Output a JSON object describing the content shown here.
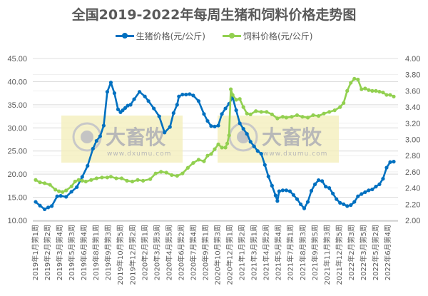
{
  "chart_data": {
    "type": "line",
    "title": "全国2019-2022年每周生猪和饲料价格走势图",
    "xlabel": "",
    "ylabel_left": "",
    "ylabel_right": "",
    "ylim_left": [
      10,
      45
    ],
    "ylim_right": [
      2.0,
      4.0
    ],
    "grid": true,
    "legend_position": "top",
    "left_ticks": [
      "45.00",
      "40.00",
      "35.00",
      "30.00",
      "25.00",
      "20.00",
      "15.00",
      "10.00"
    ],
    "right_ticks": [
      "4.00",
      "3.80",
      "3.60",
      "3.40",
      "3.20",
      "3.00",
      "2.80",
      "2.60",
      "2.40",
      "2.20",
      "2.00"
    ],
    "categories": [
      "2019年1月第1周",
      "2019年2月第2周",
      "2019年3月第4周",
      "2019年5月第3周",
      "2019年6月第4周",
      "2019年8月第1周",
      "2019年9月第3周",
      "2019年10月第5周",
      "2019年12月第2周",
      "2020年2月第1周",
      "2020年3月第3周",
      "2020年4月第5周",
      "2020年6月第2周",
      "2020年7月第4周",
      "2020年9月第1周",
      "2020年10月第3周",
      "2020年12月第1周",
      "2021年1月第2周",
      "2021年3月第1周",
      "2021年4月第2周",
      "2021年5月第4周",
      "2021年7月第1周",
      "2021年8月第3周",
      "2021年9月第5周",
      "2021年11月第3周",
      "2021年12月第5周",
      "2022年2月第3周",
      "2022年3月第5周",
      "2022年5月第2周",
      "2022年6月第4周"
    ],
    "series": [
      {
        "name": "生猪价格(元/公斤)",
        "axis": "left",
        "color": "#0070C0",
        "points_x_frac": [
          0,
          0.012,
          0.025,
          0.035,
          0.045,
          0.06,
          0.07,
          0.085,
          0.1,
          0.115,
          0.13,
          0.145,
          0.16,
          0.17,
          0.18,
          0.19,
          0.2,
          0.21,
          0.22,
          0.23,
          0.237,
          0.243,
          0.25,
          0.257,
          0.265,
          0.275,
          0.29,
          0.305,
          0.315,
          0.33,
          0.345,
          0.36,
          0.375,
          0.385,
          0.395,
          0.4,
          0.41,
          0.42,
          0.43,
          0.44,
          0.455,
          0.47,
          0.48,
          0.49,
          0.5,
          0.51,
          0.52,
          0.53,
          0.54,
          0.55,
          0.56,
          0.57,
          0.58,
          0.59,
          0.6,
          0.61,
          0.62,
          0.63,
          0.64,
          0.65,
          0.66,
          0.67,
          0.675,
          0.68,
          0.69,
          0.7,
          0.71,
          0.72,
          0.73,
          0.74,
          0.75,
          0.76,
          0.77,
          0.78,
          0.79,
          0.8,
          0.81,
          0.82,
          0.83,
          0.84,
          0.85,
          0.86,
          0.87,
          0.88,
          0.89,
          0.9,
          0.91,
          0.92,
          0.93,
          0.94,
          0.95,
          0.96,
          0.97,
          0.98,
          0.99,
          1.0
        ],
        "values": [
          14,
          13.2,
          12.4,
          12.8,
          13.1,
          15.2,
          15.3,
          15.1,
          16.2,
          17.2,
          19.4,
          21.8,
          25.5,
          27.2,
          28.2,
          30.5,
          37.8,
          39.8,
          37.5,
          34,
          33.4,
          33.8,
          34.3,
          34.8,
          35,
          36.2,
          37.8,
          36.8,
          35.8,
          34.2,
          32.5,
          29,
          30.2,
          33.2,
          35,
          36.8,
          37.2,
          37.2,
          37.3,
          37,
          35.8,
          33,
          31.5,
          30.4,
          30.3,
          30.5,
          33,
          34.2,
          35.2,
          36.6,
          33.8,
          31,
          29.8,
          28.7,
          27,
          26,
          25,
          24.4,
          22,
          19.5,
          17.5,
          15.4,
          14.2,
          16.3,
          16.5,
          16.5,
          16.3,
          15.5,
          14.6,
          13.5,
          12.6,
          14,
          16.4,
          17.8,
          18.7,
          18.5,
          17.3,
          17,
          15.8,
          14.6,
          13.8,
          13.5,
          13.1,
          13.3,
          14,
          15.2,
          15.7,
          16.1,
          16.5,
          16.7,
          17.3,
          17.8,
          19,
          21.4,
          22.6,
          22.7
        ]
      },
      {
        "name": "饲料价格(元/公斤)",
        "axis": "right",
        "color": "#92D050",
        "points_x_frac": [
          0,
          0.012,
          0.025,
          0.04,
          0.055,
          0.065,
          0.075,
          0.085,
          0.1,
          0.11,
          0.12,
          0.13,
          0.14,
          0.155,
          0.17,
          0.185,
          0.2,
          0.21,
          0.225,
          0.24,
          0.255,
          0.27,
          0.285,
          0.3,
          0.32,
          0.335,
          0.35,
          0.365,
          0.38,
          0.395,
          0.41,
          0.425,
          0.44,
          0.455,
          0.47,
          0.48,
          0.49,
          0.5,
          0.51,
          0.52,
          0.53,
          0.535,
          0.54,
          0.545,
          0.55,
          0.56,
          0.57,
          0.58,
          0.59,
          0.6,
          0.615,
          0.63,
          0.645,
          0.66,
          0.675,
          0.69,
          0.7,
          0.715,
          0.73,
          0.745,
          0.76,
          0.775,
          0.79,
          0.805,
          0.82,
          0.835,
          0.85,
          0.86,
          0.87,
          0.88,
          0.89,
          0.9,
          0.91,
          0.92,
          0.93,
          0.94,
          0.95,
          0.96,
          0.97,
          0.98,
          0.99,
          1.0
        ],
        "values": [
          2.5,
          2.47,
          2.46,
          2.44,
          2.38,
          2.36,
          2.35,
          2.37,
          2.42,
          2.48,
          2.5,
          2.49,
          2.48,
          2.5,
          2.52,
          2.53,
          2.53,
          2.54,
          2.52,
          2.52,
          2.49,
          2.48,
          2.5,
          2.49,
          2.51,
          2.58,
          2.6,
          2.59,
          2.56,
          2.55,
          2.58,
          2.65,
          2.71,
          2.75,
          2.73,
          2.8,
          2.82,
          2.88,
          2.94,
          2.9,
          2.9,
          2.95,
          3.05,
          3.62,
          3.55,
          3.49,
          3.5,
          3.4,
          3.32,
          3.31,
          3.35,
          3.34,
          3.34,
          3.31,
          3.26,
          3.28,
          3.27,
          3.28,
          3.3,
          3.28,
          3.27,
          3.3,
          3.29,
          3.32,
          3.34,
          3.36,
          3.4,
          3.45,
          3.6,
          3.7,
          3.75,
          3.74,
          3.62,
          3.63,
          3.61,
          3.6,
          3.6,
          3.59,
          3.58,
          3.55,
          3.55,
          3.53
        ]
      }
    ],
    "watermarks": [
      {
        "brand": "大畜牧",
        "url": "www.dxumu.com"
      },
      {
        "brand": "大畜牧",
        "url": "www.dxumu.com"
      }
    ]
  },
  "labels": {
    "title": "全国2019-2022年每周生猪和饲料价格走势图",
    "legend_pig": "生猪价格(元/公斤)",
    "legend_feed": "饲料价格(元/公斤)",
    "watermark_brand": "大畜牧",
    "watermark_url": "www.dxumu.com"
  }
}
